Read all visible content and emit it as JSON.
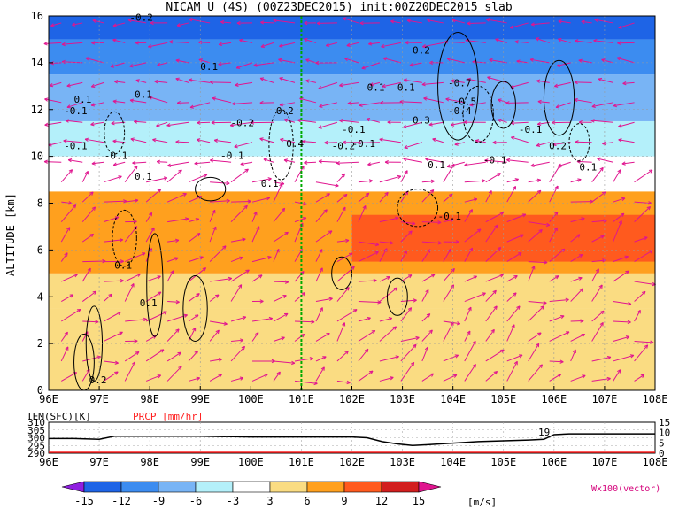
{
  "title": "NICAM U (4S) (00Z23DEC2015) init:00Z20DEC2015 slab",
  "chart_data": [
    {
      "type": "heatmap",
      "title": "NICAM U (4S) (00Z23DEC2015) init:00Z20DEC2015 slab",
      "ylabel": "ALTITUDE [km]",
      "x_ticks": [
        "96E",
        "97E",
        "98E",
        "99E",
        "100E",
        "101E",
        "102E",
        "103E",
        "104E",
        "105E",
        "106E",
        "107E",
        "108E"
      ],
      "y_ticks": [
        "0",
        "2",
        "4",
        "6",
        "8",
        "10",
        "12",
        "14",
        "16"
      ],
      "xlim": [
        96,
        108
      ],
      "ylim": [
        0,
        16
      ],
      "reference_line_lon": 101,
      "zonal_wind_bands": [
        {
          "z_min": 0.0,
          "z_max": 3.5,
          "u": 3
        },
        {
          "z_min": 3.5,
          "z_max": 5.0,
          "u": 4
        },
        {
          "z_min": 5.0,
          "z_max": 8.5,
          "u": 6
        },
        {
          "z_min": 5.5,
          "z_max": 7.5,
          "u": 9,
          "lon_min": 102,
          "lon_max": 108
        },
        {
          "z_min": 8.5,
          "z_max": 10.0,
          "u": 0
        },
        {
          "z_min": 10.0,
          "z_max": 11.5,
          "u": -4
        },
        {
          "z_min": 11.5,
          "z_max": 13.5,
          "u": -8
        },
        {
          "z_min": 13.5,
          "z_max": 15.0,
          "u": -11
        },
        {
          "z_min": 15.0,
          "z_max": 16.0,
          "u": -15
        }
      ],
      "contour_labels": [
        "-0.2",
        "0.1",
        "0.1",
        "-0.2",
        "-0.1",
        "-0.1",
        "-0.1",
        "0.1",
        "0.1",
        "-0.1",
        "0.2",
        "0.1",
        "0.4",
        "-0.2",
        "-0.1",
        "0.1",
        "0.2",
        "-0.7",
        "-0.5",
        "-0.4",
        "0.3",
        "0.1",
        "-0.1",
        "-0.1",
        "0.2",
        "-0.1",
        "0.1",
        "-0.1",
        "0.1",
        "0.1",
        "0.2",
        "0.1"
      ],
      "colorbar": {
        "levels": [
          "-15",
          "-12",
          "-9",
          "-6",
          "-3",
          "3",
          "6",
          "9",
          "12",
          "15"
        ],
        "colors": [
          "#8f1ee0",
          "#1e64e6",
          "#3c8cf0",
          "#78b4f5",
          "#b4f0fa",
          "#ffffff",
          "#fadc82",
          "#ffa01e",
          "#ff5a1e",
          "#d21e1e",
          "#a00000"
        ],
        "unit": "[m/s]"
      },
      "vector_label": "Wx100(vector)"
    },
    {
      "type": "line",
      "labels": [
        "TEM(SFC)[K]",
        "PRCP [mm/hr]"
      ],
      "x_ticks": [
        "96E",
        "97E",
        "98E",
        "99E",
        "100E",
        "101E",
        "102E",
        "103E",
        "104E",
        "105E",
        "106E",
        "107E",
        "108E"
      ],
      "left_y_ticks": [
        "310",
        "305",
        "300",
        "295",
        "290"
      ],
      "right_y_ticks": [
        "15",
        "10",
        "5",
        "0"
      ],
      "series": [
        {
          "name": "TEM(SFC)[K]",
          "x": [
            96.0,
            96.5,
            97.0,
            97.3,
            99.0,
            100.0,
            101.0,
            102.0,
            102.3,
            102.6,
            102.9,
            103.2,
            103.5,
            104.0,
            104.5,
            105.0,
            105.5,
            105.8,
            106.0,
            106.3,
            107.0,
            108.0
          ],
          "y": [
            299.5,
            299.5,
            299.0,
            301.0,
            301.0,
            300.5,
            300.5,
            300.5,
            300.0,
            297.5,
            296.0,
            295.0,
            295.5,
            296.5,
            297.5,
            298.0,
            298.5,
            299.0,
            302.0,
            302.5,
            302.5,
            302.5
          ]
        },
        {
          "name": "PRCP [mm/hr]",
          "x": [
            96,
            97,
            98,
            99,
            100,
            101,
            102,
            103,
            104,
            105,
            106,
            107,
            108
          ],
          "y": [
            0,
            0,
            0,
            0,
            0,
            0,
            0,
            0,
            0,
            0,
            0,
            0,
            0
          ]
        }
      ],
      "annotation": "19"
    }
  ]
}
